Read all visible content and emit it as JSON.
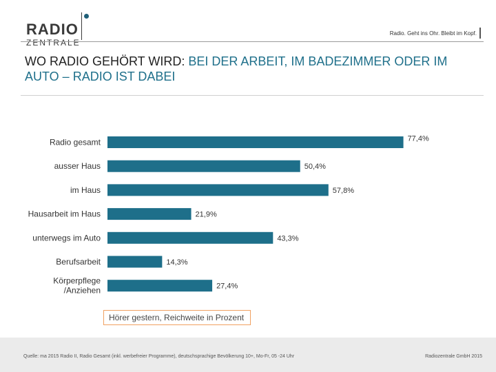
{
  "header": {
    "logo_top": "RADIO",
    "logo_bottom": "ZENTRALE",
    "tagline": "Radio. Geht ins Ohr. Bleibt im Kopf."
  },
  "title": {
    "part1": "WO RADIO GEHÖRT WIRD: ",
    "part2": "BEI DER ARBEIT, IM BADEZIMMER ODER IM AUTO – RADIO IST DABEI"
  },
  "colors": {
    "bar": "#1e6f8a",
    "accent": "#1e6f8a",
    "legend_border": "#f0a060"
  },
  "chart_data": {
    "type": "bar",
    "orientation": "horizontal",
    "categories": [
      "Radio gesamt",
      "ausser Haus",
      "im Haus",
      "Hausarbeit im Haus",
      "unterwegs im Auto",
      "Berufsarbeit",
      "Körperpflege\n/Anziehen"
    ],
    "values": [
      77.4,
      50.4,
      57.8,
      21.9,
      43.3,
      14.3,
      27.4
    ],
    "value_labels": [
      "77,4%",
      "50,4%",
      "57,8%",
      "21,9%",
      "43,3%",
      "14,3%",
      "27,4%"
    ],
    "xlim": [
      0,
      100
    ],
    "legend": "Hörer gestern, Reichweite in Prozent"
  },
  "footer": {
    "source": "Quelle: ma 2015 Radio II, Radio Gesamt (inkl. werbefreier Programme), deutschsprachige Bevölkerung 10+, Mo-Fr, 05 -24 Uhr",
    "copyright": "Radiozentrale GmbH 2015"
  }
}
